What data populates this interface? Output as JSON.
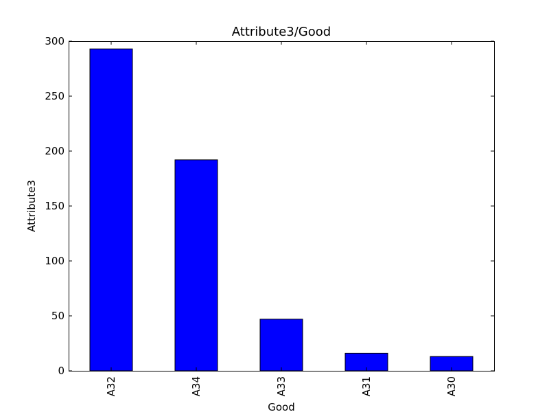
{
  "chart_data": {
    "type": "bar",
    "title": "Attribute3/Good",
    "xlabel": "Good",
    "ylabel": "Attribute3",
    "categories": [
      "A32",
      "A34",
      "A33",
      "A31",
      "A30"
    ],
    "values": [
      293,
      192,
      47,
      16,
      13
    ],
    "ylim": [
      0,
      300
    ],
    "yticks": [
      0,
      50,
      100,
      150,
      200,
      250,
      300
    ],
    "bar_color": "#0000ff",
    "grid": false,
    "legend": "none"
  }
}
